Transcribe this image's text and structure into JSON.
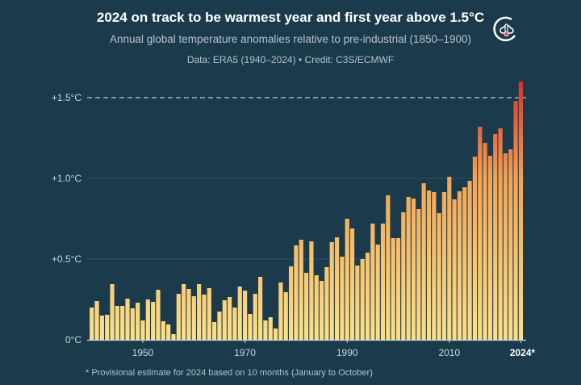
{
  "chart_data": {
    "type": "bar",
    "title": "2024 on track to be warmest year and first year above 1.5°C",
    "subtitle": "Annual global temperature anomalies relative to pre-industrial (1850–1900)",
    "source": "Data: ERA5 (1940–2024)  •  Credit: C3S/ECMWF",
    "footnote": "* Provisional estimate for 2024 based on 10 months (January to October)",
    "xlabel": "",
    "ylabel": "",
    "ylim": [
      0,
      1.6
    ],
    "yticks": [
      {
        "v": 0,
        "label": "0°C"
      },
      {
        "v": 0.5,
        "label": "+0.5°C"
      },
      {
        "v": 1.0,
        "label": "+1.0°C"
      },
      {
        "v": 1.5,
        "label": "+1.5°C"
      }
    ],
    "xticks": [
      {
        "v": 1950,
        "label": "1950"
      },
      {
        "v": 1970,
        "label": "1970"
      },
      {
        "v": 1990,
        "label": "1990"
      },
      {
        "v": 2010,
        "label": "2010"
      },
      {
        "v": 2024,
        "label": "2024*"
      }
    ],
    "reference_line": {
      "value": 1.5,
      "style": "dashed"
    },
    "grid": true,
    "color_scale": [
      "#fbe08a",
      "#f2a554",
      "#d8322a"
    ],
    "x": [
      1940,
      1941,
      1942,
      1943,
      1944,
      1945,
      1946,
      1947,
      1948,
      1949,
      1950,
      1951,
      1952,
      1953,
      1954,
      1955,
      1956,
      1957,
      1958,
      1959,
      1960,
      1961,
      1962,
      1963,
      1964,
      1965,
      1966,
      1967,
      1968,
      1969,
      1970,
      1971,
      1972,
      1973,
      1974,
      1975,
      1976,
      1977,
      1978,
      1979,
      1980,
      1981,
      1982,
      1983,
      1984,
      1985,
      1986,
      1987,
      1988,
      1989,
      1990,
      1991,
      1992,
      1993,
      1994,
      1995,
      1996,
      1997,
      1998,
      1999,
      2000,
      2001,
      2002,
      2003,
      2004,
      2005,
      2006,
      2007,
      2008,
      2009,
      2010,
      2011,
      2012,
      2013,
      2014,
      2015,
      2016,
      2017,
      2018,
      2019,
      2020,
      2021,
      2022,
      2023,
      2024
    ],
    "values": [
      0.2,
      0.24,
      0.15,
      0.155,
      0.345,
      0.21,
      0.21,
      0.255,
      0.195,
      0.23,
      0.12,
      0.25,
      0.235,
      0.31,
      0.115,
      0.095,
      0.035,
      0.285,
      0.345,
      0.315,
      0.27,
      0.345,
      0.28,
      0.32,
      0.11,
      0.175,
      0.245,
      0.265,
      0.2,
      0.33,
      0.305,
      0.16,
      0.285,
      0.39,
      0.12,
      0.14,
      0.07,
      0.355,
      0.295,
      0.455,
      0.585,
      0.62,
      0.415,
      0.61,
      0.4,
      0.365,
      0.45,
      0.605,
      0.635,
      0.515,
      0.75,
      0.69,
      0.46,
      0.5,
      0.54,
      0.72,
      0.59,
      0.72,
      0.895,
      0.63,
      0.63,
      0.79,
      0.885,
      0.875,
      0.81,
      0.97,
      0.925,
      0.915,
      0.785,
      0.915,
      1.01,
      0.87,
      0.92,
      0.945,
      0.985,
      1.135,
      1.32,
      1.22,
      1.14,
      1.275,
      1.31,
      1.155,
      1.18,
      1.48,
      1.6
    ]
  }
}
